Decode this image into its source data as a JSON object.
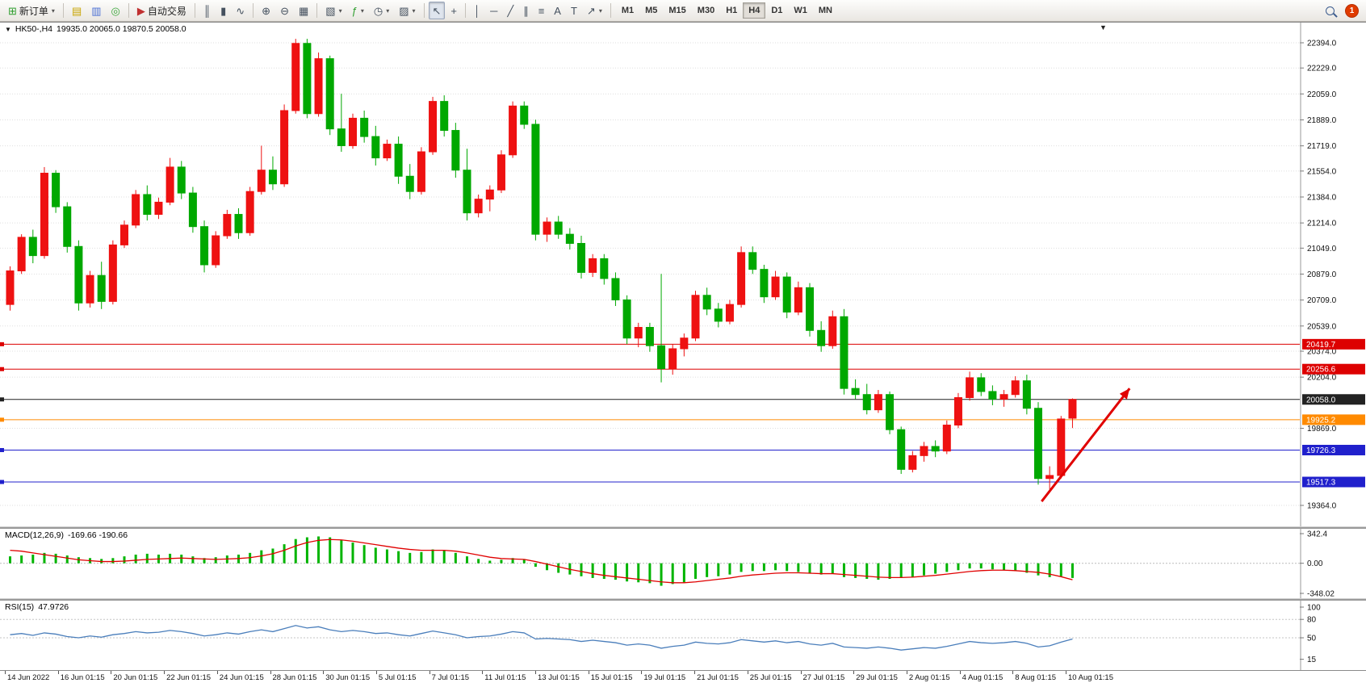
{
  "toolbar": {
    "dropdown_glyph": "▾",
    "notification_count": "1",
    "groups": [
      {
        "items": [
          {
            "name": "new-order",
            "label": "新订单",
            "glyph": "⊞",
            "color": "#2e9e2e",
            "dropdown": true
          }
        ]
      },
      {
        "items": [
          {
            "name": "market-watch",
            "glyph": "▤",
            "color": "#c8a400"
          },
          {
            "name": "data-window",
            "glyph": "▥",
            "color": "#4a6fd4"
          },
          {
            "name": "navigator",
            "glyph": "◎",
            "color": "#3aa63a"
          }
        ]
      },
      {
        "items": [
          {
            "name": "auto-trading",
            "label": "自动交易",
            "glyph": "▶",
            "color": "#c03030"
          }
        ]
      },
      {
        "items": [
          {
            "name": "bar-chart",
            "glyph": "║"
          },
          {
            "name": "candlestick-chart",
            "glyph": "▮"
          },
          {
            "name": "line-chart",
            "glyph": "∿"
          }
        ]
      },
      {
        "items": [
          {
            "name": "zoom-in",
            "glyph": "⊕"
          },
          {
            "name": "zoom-out",
            "glyph": "⊖"
          },
          {
            "name": "tile-windows",
            "glyph": "▦"
          }
        ]
      },
      {
        "items": [
          {
            "name": "auto-arrange",
            "glyph": "▧",
            "dropdown": true
          },
          {
            "name": "indicators",
            "glyph": "ƒ",
            "color": "#2e9e2e",
            "dropdown": true
          },
          {
            "name": "periods",
            "glyph": "◷",
            "dropdown": true
          },
          {
            "name": "templates",
            "glyph": "▨",
            "dropdown": true
          }
        ]
      },
      {
        "items": [
          {
            "name": "cursor",
            "glyph": "↖",
            "active": true
          },
          {
            "name": "crosshair",
            "glyph": "+"
          }
        ]
      },
      {
        "items": [
          {
            "name": "vertical-line-tool",
            "glyph": "│"
          },
          {
            "name": "horizontal-line-tool",
            "glyph": "─"
          },
          {
            "name": "trendline-tool",
            "glyph": "╱"
          },
          {
            "name": "channel-tool",
            "glyph": "∥"
          },
          {
            "name": "fibonacci-tool",
            "glyph": "≡"
          },
          {
            "name": "text-tool",
            "glyph": "A"
          },
          {
            "name": "label-tool",
            "glyph": "T"
          },
          {
            "name": "shapes-tool",
            "glyph": "↗",
            "dropdown": true
          }
        ]
      }
    ],
    "timeframes": {
      "items": [
        "M1",
        "M5",
        "M15",
        "M30",
        "H1",
        "H4",
        "D1",
        "W1",
        "MN"
      ],
      "active": "H4"
    }
  },
  "chart": {
    "title": {
      "marker_glyph": "▼",
      "symbol_period": "HK50-,H4",
      "ohlc": "19935.0 20065.0 19870.5 20058.0"
    },
    "shift_marker_glyph": "▼",
    "colors": {
      "up": "#ee1111",
      "down": "#00a800",
      "macd_histogram": "#00b400",
      "macd_signal": "#e00000",
      "rsi_line": "#4a7ebb",
      "grid": "#dfdfdf"
    },
    "price_axis": {
      "ticks": [
        "22394.0",
        "22229.0",
        "22059.0",
        "21889.0",
        "21719.0",
        "21554.0",
        "21384.0",
        "21214.0",
        "21049.0",
        "20879.0",
        "20709.0",
        "20539.0",
        "20374.0",
        "20204.0",
        "19869.0",
        "19364.0"
      ]
    },
    "levels": [
      {
        "label": "20419.7",
        "price": 20419.7,
        "color": "#dd0000"
      },
      {
        "label": "20256.6",
        "price": 20256.6,
        "color": "#dd0000"
      },
      {
        "label": "20058.0",
        "price": 20058.0,
        "color": "#222222"
      },
      {
        "label": "19925.2",
        "price": 19925.2,
        "color": "#ff8a00"
      },
      {
        "label": "19726.3",
        "price": 19726.3,
        "color": "#2020cc"
      },
      {
        "label": "19517.3",
        "price": 19517.3,
        "color": "#2020cc"
      }
    ],
    "time_axis": [
      "14 Jun 2022",
      "16 Jun 01:15",
      "20 Jun 01:15",
      "22 Jun 01:15",
      "24 Jun 01:15",
      "28 Jun 01:15",
      "30 Jun 01:15",
      "5 Jul 01:15",
      "7 Jul 01:15",
      "11 Jul 01:15",
      "13 Jul 01:15",
      "15 Jul 01:15",
      "19 Jul 01:15",
      "21 Jul 01:15",
      "25 Jul 01:15",
      "27 Jul 01:15",
      "29 Jul 01:15",
      "2 Aug 01:15",
      "4 Aug 01:15",
      "8 Aug 01:15",
      "10 Aug 01:15"
    ]
  },
  "chart_data": {
    "type": "candlestick",
    "symbol": "HK50-",
    "period": "H4",
    "last_candle_ohlc": {
      "open": 19935.0,
      "high": 20065.0,
      "low": 19870.5,
      "close": 20058.0
    },
    "price_range": [
      19364,
      22394
    ],
    "candles": [
      [
        20680,
        20930,
        20640,
        20900
      ],
      [
        20900,
        21140,
        20880,
        21120
      ],
      [
        21120,
        21170,
        20950,
        21000
      ],
      [
        21000,
        21580,
        20980,
        21540
      ],
      [
        21540,
        21560,
        21280,
        21320
      ],
      [
        21320,
        21350,
        21020,
        21060
      ],
      [
        21060,
        21100,
        20640,
        20690
      ],
      [
        20690,
        20900,
        20660,
        20870
      ],
      [
        20870,
        20960,
        20650,
        20700
      ],
      [
        20700,
        21100,
        20680,
        21070
      ],
      [
        21070,
        21230,
        21050,
        21200
      ],
      [
        21200,
        21430,
        21180,
        21400
      ],
      [
        21400,
        21460,
        21230,
        21270
      ],
      [
        21270,
        21380,
        21240,
        21350
      ],
      [
        21350,
        21640,
        21330,
        21580
      ],
      [
        21580,
        21620,
        21370,
        21410
      ],
      [
        21410,
        21450,
        21150,
        21190
      ],
      [
        21190,
        21230,
        20890,
        20940
      ],
      [
        20940,
        21160,
        20920,
        21130
      ],
      [
        21130,
        21300,
        21110,
        21270
      ],
      [
        21270,
        21310,
        21110,
        21150
      ],
      [
        21150,
        21450,
        21130,
        21420
      ],
      [
        21420,
        21720,
        21400,
        21560
      ],
      [
        21560,
        21650,
        21430,
        21470
      ],
      [
        21470,
        21990,
        21450,
        21950
      ],
      [
        21950,
        22420,
        21930,
        22390
      ],
      [
        22390,
        22420,
        21900,
        21930
      ],
      [
        21930,
        22330,
        21910,
        22290
      ],
      [
        22290,
        22310,
        21790,
        21830
      ],
      [
        21830,
        22060,
        21680,
        21720
      ],
      [
        21720,
        21930,
        21700,
        21900
      ],
      [
        21900,
        21950,
        21740,
        21780
      ],
      [
        21780,
        21850,
        21590,
        21640
      ],
      [
        21640,
        21760,
        21620,
        21730
      ],
      [
        21730,
        21780,
        21470,
        21520
      ],
      [
        21520,
        21600,
        21370,
        21420
      ],
      [
        21420,
        21710,
        21400,
        21680
      ],
      [
        21680,
        22040,
        21660,
        22010
      ],
      [
        22010,
        22050,
        21780,
        21820
      ],
      [
        21820,
        21870,
        21510,
        21560
      ],
      [
        21560,
        21700,
        21230,
        21280
      ],
      [
        21280,
        21400,
        21250,
        21370
      ],
      [
        21370,
        21460,
        21290,
        21430
      ],
      [
        21430,
        21690,
        21410,
        21660
      ],
      [
        21660,
        22010,
        21640,
        21980
      ],
      [
        21980,
        22010,
        21830,
        21860
      ],
      [
        21860,
        21890,
        21100,
        21140
      ],
      [
        21140,
        21250,
        21090,
        21220
      ],
      [
        21220,
        21260,
        21110,
        21140
      ],
      [
        21140,
        21180,
        21040,
        21080
      ],
      [
        21080,
        21130,
        20850,
        20890
      ],
      [
        20890,
        21010,
        20860,
        20980
      ],
      [
        20980,
        21010,
        20810,
        20850
      ],
      [
        20850,
        20890,
        20670,
        20710
      ],
      [
        20710,
        20740,
        20420,
        20460
      ],
      [
        20460,
        20560,
        20400,
        20530
      ],
      [
        20530,
        20560,
        20370,
        20410
      ],
      [
        20410,
        20880,
        20170,
        20260
      ],
      [
        20260,
        20420,
        20220,
        20390
      ],
      [
        20390,
        20490,
        20340,
        20460
      ],
      [
        20460,
        20770,
        20440,
        20740
      ],
      [
        20740,
        20790,
        20610,
        20650
      ],
      [
        20650,
        20690,
        20530,
        20570
      ],
      [
        20570,
        20710,
        20550,
        20680
      ],
      [
        20680,
        21060,
        20660,
        21020
      ],
      [
        21020,
        21060,
        20880,
        20910
      ],
      [
        20910,
        20940,
        20690,
        20730
      ],
      [
        20730,
        20900,
        20710,
        20860
      ],
      [
        20860,
        20890,
        20590,
        20630
      ],
      [
        20630,
        20830,
        20610,
        20790
      ],
      [
        20790,
        20820,
        20470,
        20510
      ],
      [
        20510,
        20570,
        20370,
        20410
      ],
      [
        20410,
        20640,
        20390,
        20600
      ],
      [
        20600,
        20650,
        20090,
        20130
      ],
      [
        20130,
        20190,
        20060,
        20090
      ],
      [
        20090,
        20160,
        19960,
        19990
      ],
      [
        19990,
        20120,
        19970,
        20090
      ],
      [
        20090,
        20110,
        19830,
        19860
      ],
      [
        19860,
        19880,
        19570,
        19600
      ],
      [
        19600,
        19720,
        19580,
        19690
      ],
      [
        19690,
        19780,
        19650,
        19750
      ],
      [
        19750,
        19790,
        19680,
        19720
      ],
      [
        19720,
        19920,
        19700,
        19890
      ],
      [
        19890,
        20100,
        19870,
        20070
      ],
      [
        20070,
        20240,
        20050,
        20200
      ],
      [
        20200,
        20230,
        20080,
        20110
      ],
      [
        20110,
        20150,
        20020,
        20060
      ],
      [
        20060,
        20120,
        20010,
        20090
      ],
      [
        20090,
        20210,
        20070,
        20180
      ],
      [
        20180,
        20220,
        19960,
        20000
      ],
      [
        20000,
        20040,
        19500,
        19540
      ],
      [
        19540,
        19620,
        19470,
        19560
      ],
      [
        19560,
        19950,
        19540,
        19930
      ],
      [
        19935,
        20065,
        19870.5,
        20058
      ]
    ],
    "indicators": {
      "macd": {
        "label": "MACD(12,26,9)",
        "value_text": "-169.66 -190.66",
        "scale": [
          "342.4",
          "0.00",
          "-348.02"
        ],
        "range": [
          -348.02,
          342.4
        ],
        "histogram": [
          80,
          90,
          100,
          120,
          110,
          90,
          70,
          60,
          50,
          60,
          80,
          100,
          110,
          100,
          110,
          100,
          80,
          60,
          70,
          90,
          100,
          120,
          150,
          170,
          220,
          280,
          300,
          310,
          300,
          270,
          240,
          210,
          180,
          160,
          140,
          120,
          130,
          160,
          150,
          120,
          80,
          50,
          30,
          40,
          60,
          40,
          -40,
          -80,
          -110,
          -130,
          -150,
          -170,
          -180,
          -190,
          -210,
          -220,
          -230,
          -260,
          -240,
          -220,
          -180,
          -160,
          -150,
          -130,
          -100,
          -90,
          -90,
          -80,
          -90,
          -100,
          -120,
          -130,
          -120,
          -160,
          -170,
          -180,
          -190,
          -180,
          -170,
          -160,
          -140,
          -120,
          -100,
          -80,
          -60,
          -60,
          -70,
          -80,
          -90,
          -110,
          -140,
          -160,
          -150,
          -169.7
        ],
        "signal": [
          150,
          140,
          120,
          100,
          80,
          60,
          40,
          30,
          20,
          20,
          25,
          35,
          45,
          50,
          55,
          60,
          55,
          50,
          45,
          50,
          55,
          65,
          85,
          110,
          150,
          200,
          240,
          265,
          275,
          270,
          255,
          235,
          215,
          195,
          175,
          160,
          150,
          150,
          150,
          140,
          120,
          95,
          70,
          55,
          50,
          45,
          20,
          -10,
          -40,
          -70,
          -95,
          -120,
          -140,
          -155,
          -170,
          -185,
          -200,
          -215,
          -225,
          -225,
          -215,
          -200,
          -185,
          -170,
          -150,
          -135,
          -125,
          -115,
          -110,
          -110,
          -115,
          -120,
          -120,
          -130,
          -140,
          -150,
          -160,
          -165,
          -165,
          -160,
          -150,
          -140,
          -125,
          -110,
          -95,
          -85,
          -80,
          -80,
          -85,
          -95,
          -105,
          -125,
          -155,
          -190.7
        ]
      },
      "rsi": {
        "label": "RSI(15)",
        "value_text": "47.9726",
        "scale": [
          "100",
          "80",
          "50",
          "15"
        ],
        "levels": [
          80,
          50
        ],
        "values": [
          55,
          57,
          54,
          58,
          56,
          52,
          50,
          53,
          51,
          55,
          57,
          60,
          58,
          59,
          62,
          60,
          57,
          53,
          55,
          58,
          56,
          60,
          63,
          60,
          65,
          70,
          66,
          68,
          63,
          60,
          62,
          60,
          57,
          58,
          55,
          53,
          57,
          61,
          58,
          55,
          50,
          52,
          53,
          56,
          60,
          58,
          48,
          49,
          48,
          47,
          44,
          46,
          44,
          42,
          38,
          40,
          38,
          33,
          36,
          38,
          43,
          41,
          40,
          42,
          47,
          45,
          43,
          45,
          42,
          44,
          40,
          38,
          41,
          35,
          34,
          33,
          35,
          33,
          30,
          32,
          34,
          33,
          36,
          40,
          44,
          42,
          41,
          42,
          44,
          41,
          35,
          37,
          43,
          47.97
        ]
      }
    },
    "annotations": {
      "trend_arrow": {
        "from": {
          "index": 90.3,
          "price": 19390
        },
        "to": {
          "index": 98.0,
          "price": 20130
        },
        "color": "#e00000"
      }
    }
  }
}
